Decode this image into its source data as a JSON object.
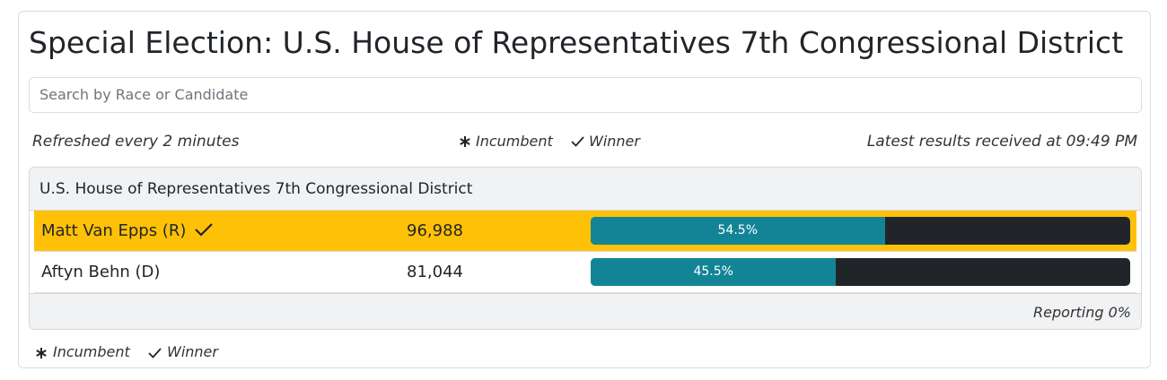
{
  "header": {
    "title": "Special Election: U.S. House of Representatives 7th Congressional District"
  },
  "search": {
    "placeholder": "Search by Race or Candidate"
  },
  "info": {
    "refreshed": "Refreshed every 2 minutes",
    "incumbent": "Incumbent",
    "winner": "Winner",
    "latest": "Latest results received at 09:49 PM"
  },
  "race": {
    "name": "U.S. House of Representatives 7th Congressional District",
    "candidates": [
      {
        "name": "Matt Van Epps (R)",
        "votes": "96,988",
        "percent": 54.5,
        "percent_label": "54.5%",
        "winner": true
      },
      {
        "name": "Aftyn Behn (D)",
        "votes": "81,044",
        "percent": 45.5,
        "percent_label": "45.5%",
        "winner": false
      }
    ],
    "reporting": "Reporting 0%"
  },
  "footer": {
    "incumbent": "Incumbent",
    "winner": "Winner"
  }
}
